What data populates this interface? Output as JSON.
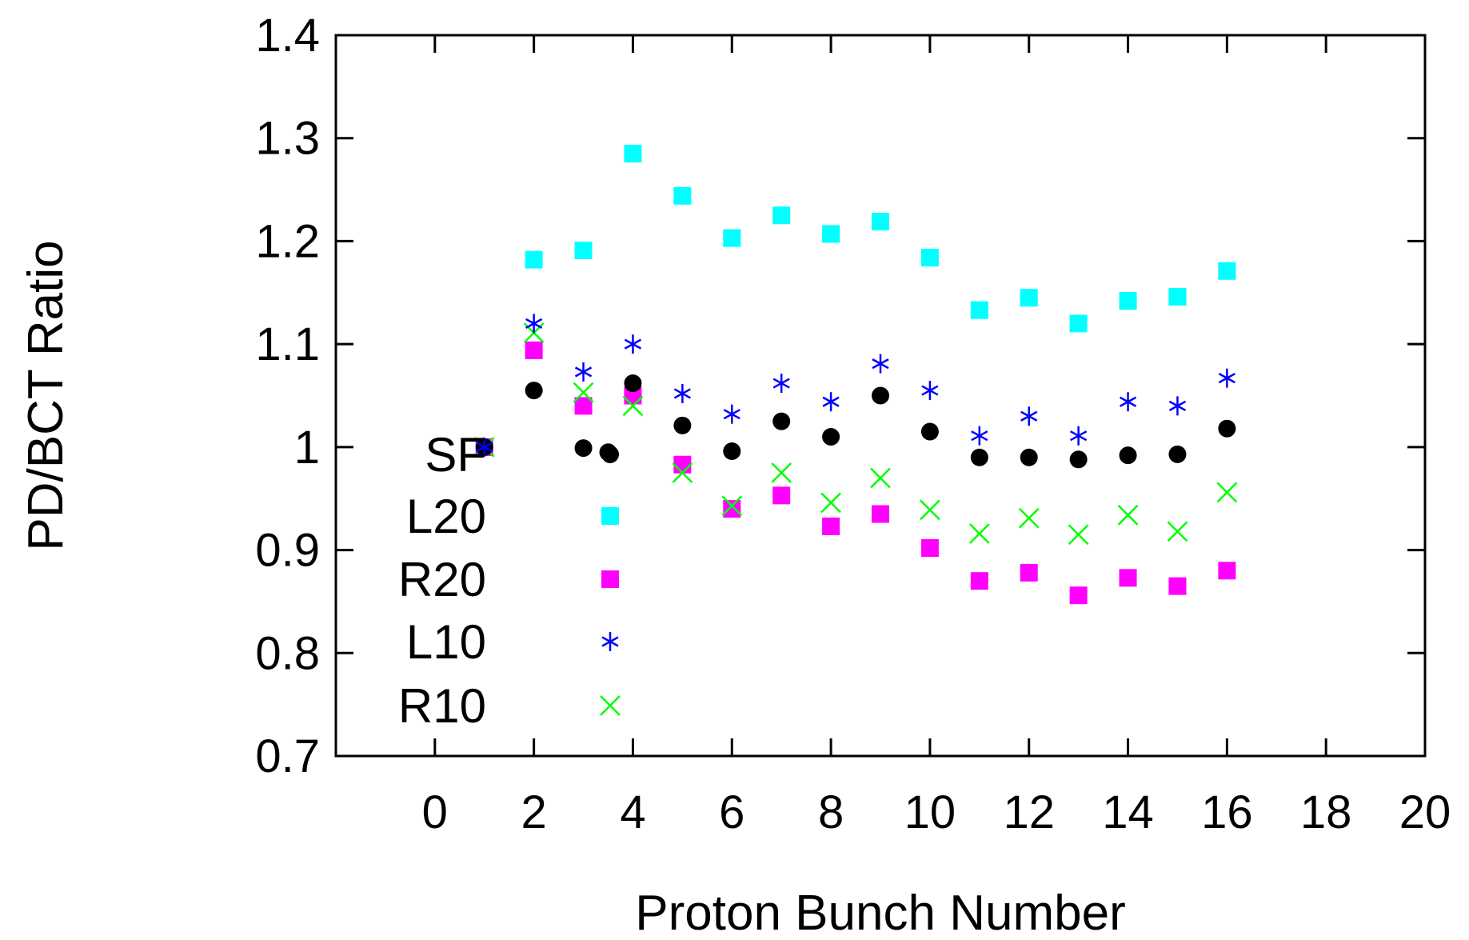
{
  "chart_data": {
    "type": "scatter",
    "title": "",
    "xlabel": "Proton Bunch Number",
    "ylabel": "PD/BCT Ratio",
    "xlim": [
      -2,
      20
    ],
    "ylim": [
      0.7,
      1.4
    ],
    "xticks": [
      0,
      2,
      4,
      6,
      8,
      10,
      12,
      14,
      16,
      18,
      20
    ],
    "yticks": [
      0.7,
      0.8,
      0.9,
      1.0,
      1.1,
      1.2,
      1.3,
      1.4
    ],
    "xtick_labels": [
      "0",
      "2",
      "4",
      "6",
      "8",
      "10",
      "12",
      "14",
      "16",
      "18",
      "20"
    ],
    "ytick_labels": [
      "0.7",
      "0.8",
      "0.9",
      "1",
      "1.1",
      "1.2",
      "1.3",
      "1.4"
    ],
    "grid": false,
    "legend_position": "bottom-left",
    "series": [
      {
        "name": "SF",
        "marker": "circle",
        "color": "#000000",
        "legend_label": "SF",
        "x": [
          1,
          2,
          3,
          3.5,
          4,
          5,
          6,
          7,
          8,
          9,
          10,
          11,
          12,
          13,
          14,
          15,
          16
        ],
        "y": [
          1.0,
          1.055,
          0.999,
          0.995,
          1.062,
          1.021,
          0.996,
          1.025,
          1.01,
          1.05,
          1.015,
          0.99,
          0.99,
          0.988,
          0.992,
          0.993,
          1.018
        ]
      },
      {
        "name": "L20",
        "marker": "square",
        "color": "#00ffff",
        "legend_label": "L20",
        "x": [
          1,
          2,
          3,
          4,
          5,
          6,
          7,
          8,
          9,
          10,
          11,
          12,
          13,
          14,
          15,
          16
        ],
        "y": [
          1.0,
          1.182,
          1.191,
          1.285,
          1.244,
          1.203,
          1.225,
          1.207,
          1.219,
          1.184,
          1.133,
          1.145,
          1.12,
          1.142,
          1.146,
          1.171
        ]
      },
      {
        "name": "R20",
        "marker": "square",
        "color": "#ff00ff",
        "legend_label": "R20",
        "x": [
          1,
          2,
          3,
          4,
          5,
          6,
          7,
          8,
          9,
          10,
          11,
          12,
          13,
          14,
          15,
          16
        ],
        "y": [
          1.0,
          1.094,
          1.04,
          1.05,
          0.983,
          0.94,
          0.953,
          0.923,
          0.935,
          0.902,
          0.87,
          0.878,
          0.856,
          0.873,
          0.865,
          0.88
        ]
      },
      {
        "name": "L10",
        "marker": "asterisk",
        "color": "#0000ff",
        "legend_label": "L10",
        "x": [
          1,
          2,
          3,
          4,
          5,
          6,
          7,
          8,
          9,
          10,
          11,
          12,
          13,
          14,
          15,
          16
        ],
        "y": [
          1.0,
          1.12,
          1.073,
          1.1,
          1.052,
          1.032,
          1.062,
          1.044,
          1.081,
          1.055,
          1.011,
          1.03,
          1.011,
          1.044,
          1.04,
          1.067
        ]
      },
      {
        "name": "R10",
        "marker": "cross",
        "color": "#00ff00",
        "legend_label": "R10",
        "x": [
          1,
          2,
          3,
          4,
          5,
          6,
          7,
          8,
          9,
          10,
          11,
          12,
          13,
          14,
          15,
          16
        ],
        "y": [
          1.0,
          1.111,
          1.053,
          1.04,
          0.975,
          0.943,
          0.975,
          0.946,
          0.97,
          0.939,
          0.916,
          0.931,
          0.915,
          0.934,
          0.918,
          0.956
        ]
      }
    ]
  }
}
